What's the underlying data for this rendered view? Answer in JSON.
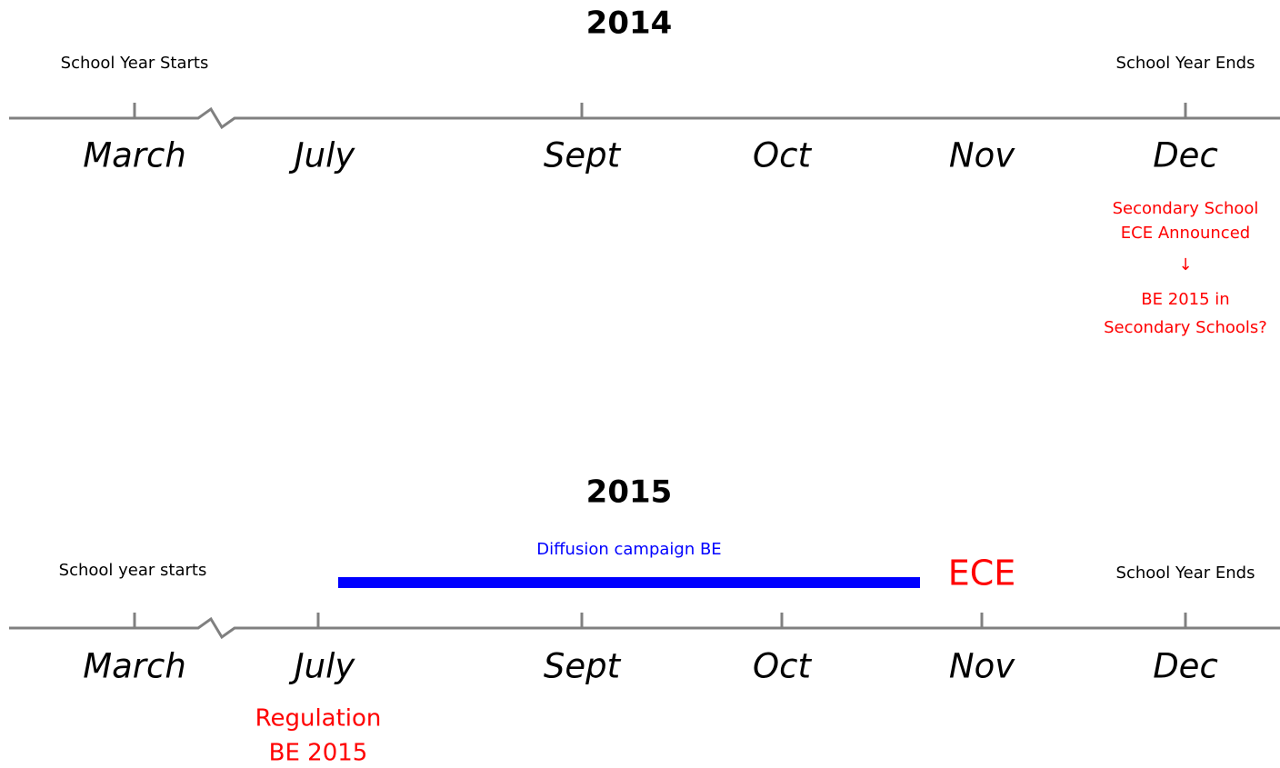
{
  "timelines": [
    {
      "year": "2014",
      "start_label": "School Year Starts",
      "end_label": "School Year Ends",
      "months": [
        "March",
        "July",
        "Sept",
        "Oct",
        "Nov",
        "Dec"
      ],
      "annotation": [
        "Secondary School",
        "ECE Announced",
        "↓",
        "BE 2015 in",
        "Secondary Schools?"
      ]
    },
    {
      "year": "2015",
      "start_label": "School year starts",
      "end_label": "School Year Ends",
      "months": [
        "March",
        "July",
        "Sept",
        "Oct",
        "Nov",
        "Dec"
      ],
      "campaign": "Diffusion campaign BE",
      "event": "ECE",
      "annotation": [
        "Regulation",
        "BE 2015"
      ]
    }
  ]
}
